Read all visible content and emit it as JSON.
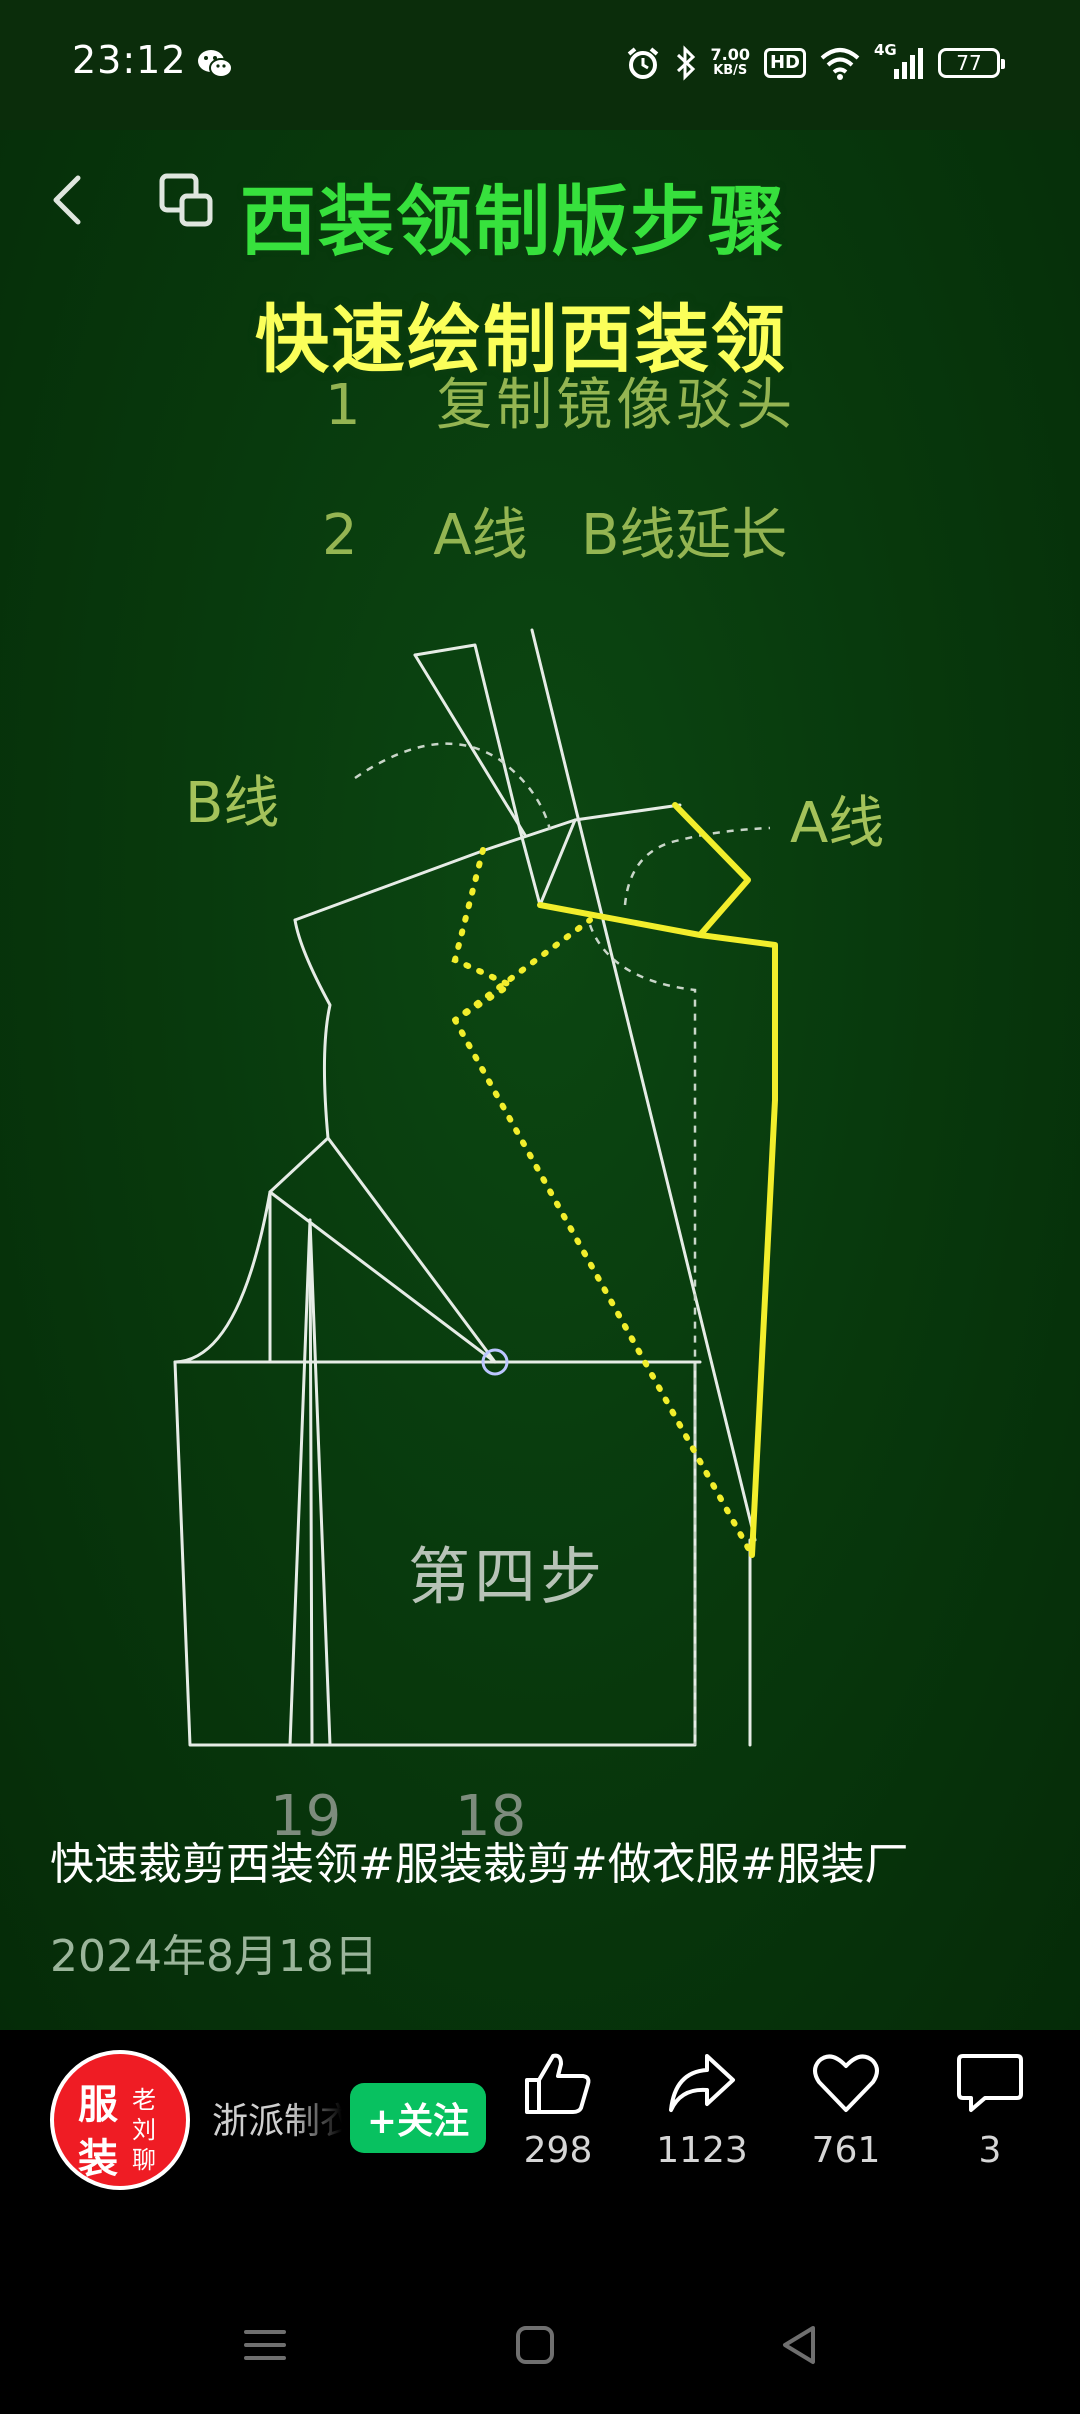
{
  "status_bar": {
    "time": "23:12",
    "net_speed_value": "7.00",
    "net_speed_unit": "KB/S",
    "hd_label": "HD",
    "network_label": "4G",
    "battery_level": "77",
    "icons": [
      "wechat-icon",
      "alarm-icon",
      "bluetooth-icon",
      "wifi-icon",
      "signal-icon",
      "battery-icon"
    ]
  },
  "video": {
    "title_main": "西装领制版步骤",
    "title_sub": "快速绘制西装领",
    "steps": [
      {
        "number": "1",
        "text": "复制镜像驳头"
      },
      {
        "number": "2",
        "text": "A线   B线延长"
      }
    ],
    "label_b": "B线",
    "label_a": "A线",
    "step_label": "第四步",
    "bottom_numbers": [
      "19",
      "18"
    ],
    "colors": {
      "background": "#083a0d",
      "title_main": "#37e13d",
      "title_sub": "#fbff5a",
      "diagram_lines": "#e6ece6",
      "highlight": "#f2ee2c"
    }
  },
  "caption": "快速裁剪西装领#服装裁剪#做衣服#服装厂",
  "date": "2024年8月18日",
  "author": {
    "avatar_big": [
      "服",
      "装"
    ],
    "avatar_small": [
      "老",
      "刘",
      "聊"
    ],
    "name": "浙派制衣"
  },
  "follow_label": "+关注",
  "actions": {
    "like": "298",
    "share": "1123",
    "favorite": "761",
    "comment": "3"
  }
}
